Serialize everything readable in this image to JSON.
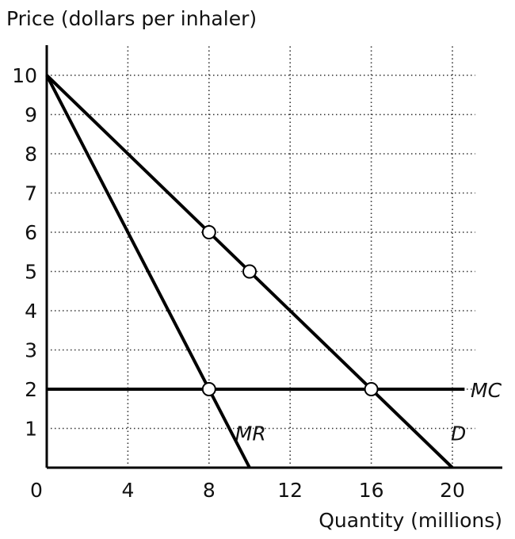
{
  "chart_data": {
    "type": "line",
    "ylabel": "Price (dollars per inhaler)",
    "xlabel": "Quantity (millions)",
    "xlim": [
      0,
      22
    ],
    "ylim": [
      0,
      10.5
    ],
    "x_ticks": [
      0,
      4,
      8,
      12,
      16,
      20
    ],
    "y_ticks": [
      1,
      2,
      3,
      4,
      5,
      6,
      7,
      8,
      9,
      10
    ],
    "x_tick_labels": [
      "0",
      "4",
      "8",
      "12",
      "16",
      "20"
    ],
    "y_tick_labels": [
      "1",
      "2",
      "3",
      "4",
      "5",
      "6",
      "7",
      "8",
      "9",
      "10"
    ],
    "grid": true,
    "legend": "none",
    "series": [
      {
        "name": "D",
        "points": [
          [
            0,
            10
          ],
          [
            20,
            0
          ]
        ],
        "color": "#000000"
      },
      {
        "name": "MR",
        "points": [
          [
            0,
            10
          ],
          [
            10,
            0
          ]
        ],
        "color": "#000000"
      },
      {
        "name": "MC",
        "points": [
          [
            0,
            2
          ],
          [
            20.6,
            2
          ]
        ],
        "color": "#000000"
      }
    ],
    "markers": [
      [
        8,
        6
      ],
      [
        10,
        5
      ],
      [
        8,
        2
      ],
      [
        16,
        2
      ]
    ]
  }
}
